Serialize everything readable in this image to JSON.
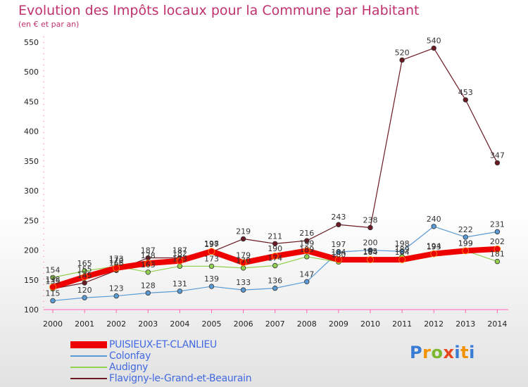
{
  "title": "Evolution des Impôts locaux pour la Commune par Habitant",
  "subtitle": "(en € et par an)",
  "logo": {
    "c1": "P",
    "c2": "r",
    "c3": "o",
    "c4": "x",
    "c5": "i",
    "c6": "t",
    "c7": "i"
  },
  "chart_data": {
    "type": "line",
    "x": [
      "2000",
      "2001",
      "2002",
      "2003",
      "2004",
      "2005",
      "2006",
      "2007",
      "2008",
      "2009",
      "2010",
      "2011",
      "2012",
      "2013",
      "2014"
    ],
    "ylim": [
      100,
      550
    ],
    "yticks": [
      100,
      150,
      200,
      250,
      300,
      350,
      400,
      450,
      500,
      550
    ],
    "grid": false,
    "legend_position": "bottom-left",
    "series": [
      {
        "name": "Flavigny-le-Grand-et-Beaurain",
        "color": "#6b1a24",
        "width": 1.2,
        "values": [
          135,
          145,
          166,
          187,
          187,
          197,
          219,
          211,
          216,
          243,
          238,
          520,
          540,
          453,
          347
        ],
        "labels": [
          "135",
          "145",
          "166",
          "187",
          "187",
          "197",
          "219",
          "211",
          "216",
          "243",
          "238",
          "520",
          "540",
          "453",
          "347"
        ]
      },
      {
        "name": "Colonfay",
        "color": "#5b9bd5",
        "width": 1.2,
        "values": [
          115,
          120,
          123,
          128,
          131,
          139,
          133,
          136,
          147,
          197,
          200,
          198,
          240,
          222,
          231
        ],
        "labels": [
          "115",
          "120",
          "123",
          "128",
          "131",
          "139",
          "133",
          "136",
          "147",
          "197",
          "200",
          "198",
          "240",
          "222",
          "231"
        ]
      },
      {
        "name": "Audigny",
        "color": "#92d050",
        "width": 1.2,
        "values": [
          154,
          165,
          173,
          163,
          173,
          173,
          170,
          174,
          189,
          180,
          185,
          189,
          193,
          199,
          181
        ],
        "labels": [
          "154",
          "165",
          "173",
          "163",
          "173",
          "173",
          "170",
          "174",
          "189",
          "180",
          "185",
          "189",
          "193",
          "199",
          "181"
        ]
      },
      {
        "name": "PUISIEUX-ET-CLANLIEU",
        "color": "#ee0000",
        "width": 8,
        "values": [
          138,
          155,
          170,
          178,
          182,
          198,
          179,
          190,
          199,
          184,
          184,
          184,
          194,
          199,
          202
        ],
        "labels": [
          "138",
          "155",
          "170",
          "178",
          "182",
          "198",
          "179",
          "190",
          "199",
          "184",
          "184",
          "184",
          "194",
          "199",
          "202"
        ]
      }
    ],
    "legend_order": [
      "PUISIEUX-ET-CLANLIEU",
      "Colonfay",
      "Audigny",
      "Flavigny-le-Grand-et-Beaurain"
    ]
  }
}
